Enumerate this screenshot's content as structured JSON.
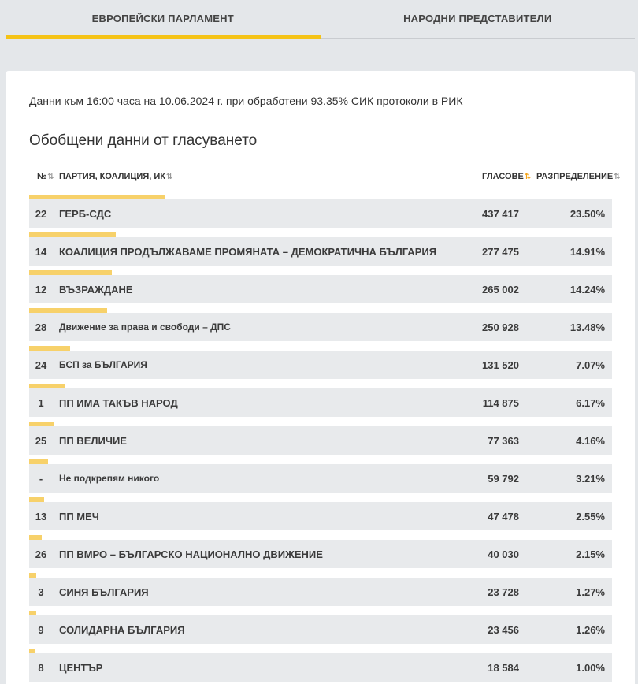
{
  "tabs": [
    {
      "label": "ЕВРОПЕЙСКИ ПАРЛАМЕНТ",
      "active": true
    },
    {
      "label": "НАРОДНИ ПРЕДСТАВИТЕЛИ",
      "active": false
    }
  ],
  "meta_text": "Данни към 16:00 часа на 10.06.2024 г. при обработени 93.35% СИК протоколи в РИК",
  "heading": "Обобщени данни от гласуването",
  "accent_color": "#f5c316",
  "bar_color": "#f7d16a",
  "table": {
    "headers": {
      "num": "№",
      "party": "ПАРТИЯ, КОАЛИЦИЯ, ИК",
      "votes": "ГЛАСОВЕ",
      "share": "РАЗПРЕДЕЛЕНИЕ"
    },
    "sort_icons": {
      "inactive": "⇅",
      "active": "⇅"
    },
    "rows": [
      {
        "num": "22",
        "party": "ГЕРБ-СДС",
        "votes": "437 417",
        "share": "23.50%",
        "pct": 23.5
      },
      {
        "num": "14",
        "party": "КОАЛИЦИЯ ПРОДЪЛЖАВАМЕ ПРОМЯНАТА – ДЕМОКРАТИЧНА БЪЛГАРИЯ",
        "votes": "277 475",
        "share": "14.91%",
        "pct": 14.91
      },
      {
        "num": "12",
        "party": "ВЪЗРАЖДАНЕ",
        "votes": "265 002",
        "share": "14.24%",
        "pct": 14.24
      },
      {
        "num": "28",
        "party": "Движение за права и свободи – ДПС",
        "votes": "250 928",
        "share": "13.48%",
        "pct": 13.48
      },
      {
        "num": "24",
        "party": "БСП за БЪЛГАРИЯ",
        "votes": "131 520",
        "share": "7.07%",
        "pct": 7.07
      },
      {
        "num": "1",
        "party": "ПП ИМА ТАКЪВ НАРОД",
        "votes": "114 875",
        "share": "6.17%",
        "pct": 6.17
      },
      {
        "num": "25",
        "party": "ПП ВЕЛИЧИЕ",
        "votes": "77 363",
        "share": "4.16%",
        "pct": 4.16
      },
      {
        "num": "-",
        "party": "Не подкрепям никого",
        "votes": "59 792",
        "share": "3.21%",
        "pct": 3.21
      },
      {
        "num": "13",
        "party": "ПП МЕЧ",
        "votes": "47 478",
        "share": "2.55%",
        "pct": 2.55
      },
      {
        "num": "26",
        "party": "ПП ВМРО – БЪЛГАРСКО НАЦИОНАЛНО ДВИЖЕНИЕ",
        "votes": "40 030",
        "share": "2.15%",
        "pct": 2.15
      },
      {
        "num": "3",
        "party": "СИНЯ БЪЛГАРИЯ",
        "votes": "23 728",
        "share": "1.27%",
        "pct": 1.27
      },
      {
        "num": "9",
        "party": "СОЛИДАРНА БЪЛГАРИЯ",
        "votes": "23 456",
        "share": "1.26%",
        "pct": 1.26
      },
      {
        "num": "8",
        "party": "ЦЕНТЪР",
        "votes": "18 584",
        "share": "1.00%",
        "pct": 1.0
      }
    ]
  }
}
